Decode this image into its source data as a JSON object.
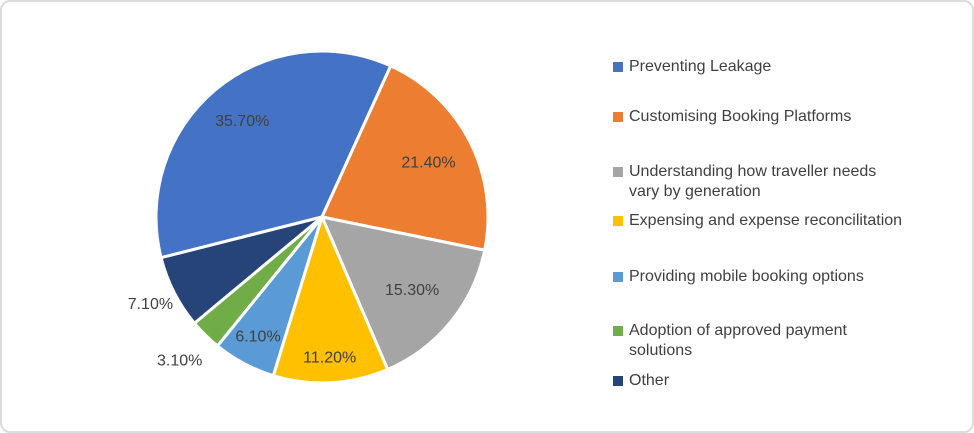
{
  "chart_data": {
    "type": "pie",
    "title": "",
    "legend_position": "right",
    "start_angle_deg": -104.2,
    "data_labels": "percent",
    "label_color": "#404040",
    "slice_border_color": "#ffffff",
    "slices": [
      {
        "label": "Preventing Leakage",
        "value": 35.7,
        "display": "35.70%",
        "color": "#4472C4",
        "label_placement": "inside"
      },
      {
        "label": "Customising Booking Platforms",
        "value": 21.4,
        "display": "21.40%",
        "color": "#ED7D31",
        "label_placement": "inside"
      },
      {
        "label": "Understanding how traveller needs\nvary by generation",
        "value": 15.3,
        "display": "15.30%",
        "color": "#A5A5A5",
        "label_placement": "inside"
      },
      {
        "label": "Expensing and expense reconcilitation",
        "value": 11.2,
        "display": "11.20%",
        "color": "#FFC000",
        "label_placement": "inside"
      },
      {
        "label": "Providing mobile booking options",
        "value": 6.1,
        "display": "6.10%",
        "color": "#5B9BD5",
        "label_placement": "inside"
      },
      {
        "label": "Adoption of approved payment\nsolutions",
        "value": 3.1,
        "display": "3.10%",
        "color": "#70AD47",
        "label_placement": "outside"
      },
      {
        "label": "Other",
        "value": 7.1,
        "display": "7.10%",
        "color": "#264478",
        "label_placement": "outside"
      }
    ]
  }
}
